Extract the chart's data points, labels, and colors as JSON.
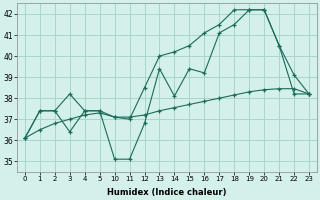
{
  "xlabel": "Humidex (Indice chaleur)",
  "bg_color": "#d4f0ea",
  "grid_color": "#aad4cc",
  "line_color": "#1a6b5a",
  "ylim": [
    34.5,
    42.5
  ],
  "yticks": [
    35,
    36,
    37,
    38,
    39,
    40,
    41,
    42
  ],
  "xlabels": [
    "0",
    "1",
    "2",
    "3",
    "4",
    "5",
    "10",
    "11",
    "12",
    "13",
    "14",
    "15",
    "16",
    "17",
    "18",
    "19",
    "20",
    "21",
    "22",
    "23"
  ],
  "series1_y": [
    36.1,
    37.4,
    37.4,
    36.4,
    37.4,
    37.4,
    35.1,
    35.1,
    36.8,
    39.4,
    38.1,
    39.4,
    39.2,
    41.1,
    41.5,
    42.2,
    42.2,
    40.5,
    39.1,
    38.2
  ],
  "series2_y": [
    36.1,
    37.4,
    37.4,
    38.2,
    37.4,
    37.4,
    37.1,
    37.0,
    38.5,
    40.0,
    40.2,
    40.5,
    41.1,
    41.5,
    42.2,
    42.2,
    42.2,
    40.5,
    38.2,
    38.2
  ],
  "series3_y": [
    36.1,
    36.5,
    36.8,
    37.0,
    37.2,
    37.3,
    37.1,
    37.1,
    37.2,
    37.4,
    37.55,
    37.7,
    37.85,
    38.0,
    38.15,
    38.3,
    38.4,
    38.45,
    38.45,
    38.2
  ]
}
